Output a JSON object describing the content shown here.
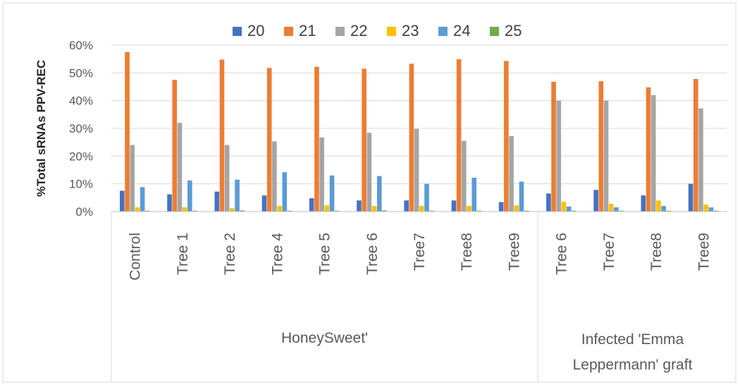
{
  "chart_data": {
    "type": "bar",
    "ylabel": "%Total sRNAs PPV-REC",
    "xlabel": "",
    "ylim": [
      0,
      0.6
    ],
    "ytick_step": 0.1,
    "ytick_labels": [
      "0%",
      "10%",
      "20%",
      "30%",
      "40%",
      "50%",
      "60%"
    ],
    "legend_position": "top",
    "grid": true,
    "categories": [
      "Control",
      "Tree 1",
      "Tree 2",
      "Tree 4",
      "Tree 5",
      "Tree 6",
      "Tree7",
      "Tree8",
      "Tree9",
      "Tree 6",
      "Tree7",
      "Tree8",
      "Tree9"
    ],
    "groups": [
      {
        "label": "HoneySweet'",
        "start": 0,
        "end": 8
      },
      {
        "label": "Infected 'Emma Leppermann' graft",
        "lines": [
          "Infected 'Emma",
          "Leppermann' graft"
        ],
        "start": 9,
        "end": 12
      }
    ],
    "series": [
      {
        "name": "20",
        "color": "#4472C4",
        "values": [
          0.075,
          0.062,
          0.072,
          0.058,
          0.048,
          0.04,
          0.04,
          0.04,
          0.034,
          0.065,
          0.078,
          0.058,
          0.1
        ]
      },
      {
        "name": "21",
        "color": "#ED7D31",
        "values": [
          0.575,
          0.475,
          0.548,
          0.518,
          0.522,
          0.515,
          0.533,
          0.549,
          0.543,
          0.468,
          0.47,
          0.448,
          0.478
        ]
      },
      {
        "name": "22",
        "color": "#A5A5A5",
        "values": [
          0.24,
          0.32,
          0.24,
          0.253,
          0.267,
          0.284,
          0.298,
          0.255,
          0.272,
          0.4,
          0.4,
          0.42,
          0.372
        ]
      },
      {
        "name": "23",
        "color": "#FFC000",
        "values": [
          0.015,
          0.015,
          0.012,
          0.02,
          0.022,
          0.02,
          0.02,
          0.02,
          0.022,
          0.035,
          0.028,
          0.04,
          0.025
        ]
      },
      {
        "name": "24",
        "color": "#5B9BD5",
        "values": [
          0.088,
          0.112,
          0.115,
          0.142,
          0.13,
          0.128,
          0.1,
          0.122,
          0.108,
          0.018,
          0.015,
          0.02,
          0.015
        ]
      },
      {
        "name": "25",
        "color": "#70AD47",
        "values": [
          0.003,
          0.003,
          0.004,
          0.003,
          0.003,
          0.004,
          0.003,
          0.003,
          0.003,
          0.003,
          0.003,
          0.003,
          0.003
        ]
      }
    ]
  }
}
